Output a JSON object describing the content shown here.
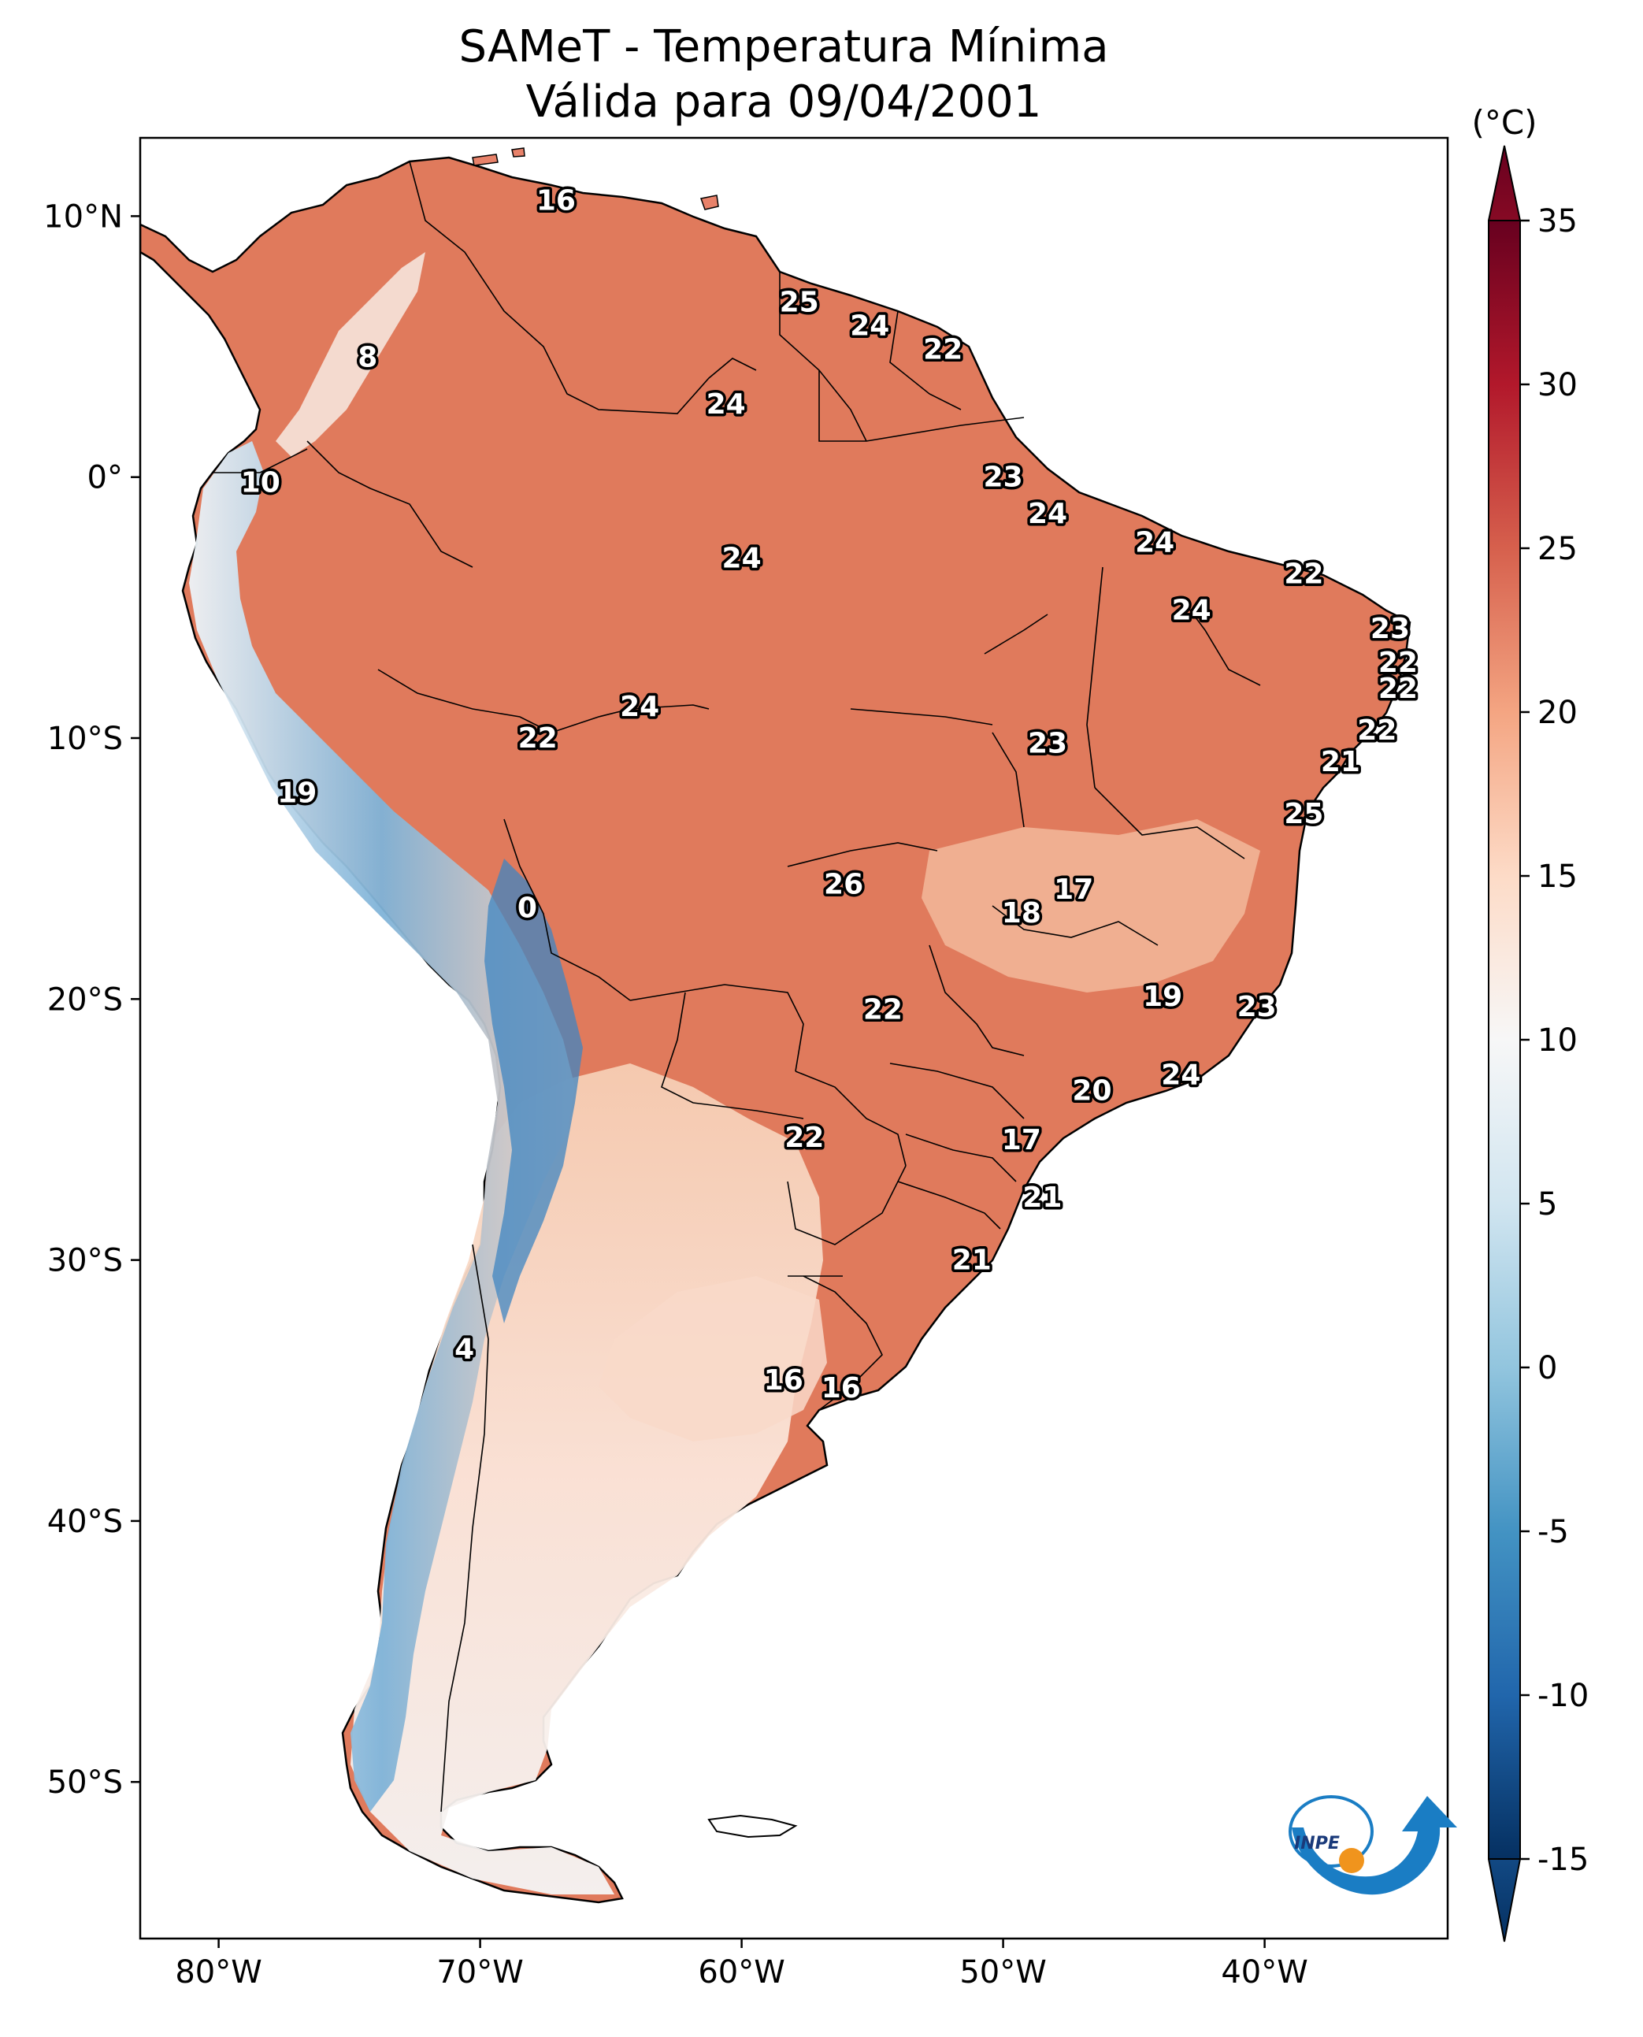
{
  "title": {
    "line1": "SAMeT - Temperatura Mínima",
    "line2": "Válida para 09/04/2001"
  },
  "map": {
    "lon_range": [
      -83,
      -33
    ],
    "lat_range": [
      -56,
      13
    ],
    "lon_ticks": [
      {
        "value": -80,
        "label": "80°W"
      },
      {
        "value": -70,
        "label": "70°W"
      },
      {
        "value": -60,
        "label": "60°W"
      },
      {
        "value": -50,
        "label": "50°W"
      },
      {
        "value": -40,
        "label": "40°W"
      }
    ],
    "lat_ticks": [
      {
        "value": 10,
        "label": "10°N"
      },
      {
        "value": 0,
        "label": "0°"
      },
      {
        "value": -10,
        "label": "10°S"
      },
      {
        "value": -20,
        "label": "20°S"
      },
      {
        "value": -30,
        "label": "30°S"
      },
      {
        "value": -40,
        "label": "40°S"
      },
      {
        "value": -50,
        "label": "50°S"
      }
    ],
    "city_values": [
      {
        "lon": -67.1,
        "lat": 10.6,
        "value": "16"
      },
      {
        "lon": -74.3,
        "lat": 4.6,
        "value": "8"
      },
      {
        "lon": -57.8,
        "lat": 6.7,
        "value": "25"
      },
      {
        "lon": -55.1,
        "lat": 5.8,
        "value": "24"
      },
      {
        "lon": -52.3,
        "lat": 4.9,
        "value": "22"
      },
      {
        "lon": -60.6,
        "lat": 2.8,
        "value": "24"
      },
      {
        "lon": -78.4,
        "lat": -0.2,
        "value": "10"
      },
      {
        "lon": -50.0,
        "lat": 0.0,
        "value": "23"
      },
      {
        "lon": -60.0,
        "lat": -3.1,
        "value": "24"
      },
      {
        "lon": -48.3,
        "lat": -1.4,
        "value": "24"
      },
      {
        "lon": -44.2,
        "lat": -2.5,
        "value": "24"
      },
      {
        "lon": -38.5,
        "lat": -3.7,
        "value": "22"
      },
      {
        "lon": -42.8,
        "lat": -5.1,
        "value": "24"
      },
      {
        "lon": -35.2,
        "lat": -5.8,
        "value": "23"
      },
      {
        "lon": -34.9,
        "lat": -7.1,
        "value": "22"
      },
      {
        "lon": -34.9,
        "lat": -8.1,
        "value": "22"
      },
      {
        "lon": -63.9,
        "lat": -8.8,
        "value": "24"
      },
      {
        "lon": -67.8,
        "lat": -10.0,
        "value": "22"
      },
      {
        "lon": -48.3,
        "lat": -10.2,
        "value": "23"
      },
      {
        "lon": -35.7,
        "lat": -9.7,
        "value": "22"
      },
      {
        "lon": -37.1,
        "lat": -10.9,
        "value": "21"
      },
      {
        "lon": -77.0,
        "lat": -12.1,
        "value": "19"
      },
      {
        "lon": -38.5,
        "lat": -12.9,
        "value": "25"
      },
      {
        "lon": -56.1,
        "lat": -15.6,
        "value": "26"
      },
      {
        "lon": -47.3,
        "lat": -15.8,
        "value": "17"
      },
      {
        "lon": -49.3,
        "lat": -16.7,
        "value": "18"
      },
      {
        "lon": -68.2,
        "lat": -16.5,
        "value": "0"
      },
      {
        "lon": -54.6,
        "lat": -20.4,
        "value": "22"
      },
      {
        "lon": -43.9,
        "lat": -19.9,
        "value": "19"
      },
      {
        "lon": -40.3,
        "lat": -20.3,
        "value": "23"
      },
      {
        "lon": -46.6,
        "lat": -23.5,
        "value": "20"
      },
      {
        "lon": -43.2,
        "lat": -22.9,
        "value": "24"
      },
      {
        "lon": -57.6,
        "lat": -25.3,
        "value": "22"
      },
      {
        "lon": -49.3,
        "lat": -25.4,
        "value": "17"
      },
      {
        "lon": -48.5,
        "lat": -27.6,
        "value": "21"
      },
      {
        "lon": -51.2,
        "lat": -30.0,
        "value": "21"
      },
      {
        "lon": -70.6,
        "lat": -33.4,
        "value": "4"
      },
      {
        "lon": -56.2,
        "lat": -34.9,
        "value": "16"
      },
      {
        "lon": -58.4,
        "lat": -34.6,
        "value": "16"
      }
    ]
  },
  "colorbar": {
    "unit": "(°C)",
    "range": [
      -15,
      35
    ],
    "ticks": [
      {
        "value": 35,
        "label": "35"
      },
      {
        "value": 30,
        "label": "30"
      },
      {
        "value": 25,
        "label": "25"
      },
      {
        "value": 20,
        "label": "20"
      },
      {
        "value": 15,
        "label": "15"
      },
      {
        "value": 10,
        "label": "10"
      },
      {
        "value": 5,
        "label": "5"
      },
      {
        "value": 0,
        "label": "0"
      },
      {
        "value": -5,
        "label": "-5"
      },
      {
        "value": -10,
        "label": "-10"
      },
      {
        "value": -15,
        "label": "-15"
      }
    ],
    "colors": [
      "#053061",
      "#2166ac",
      "#4393c3",
      "#92c5de",
      "#d1e5f0",
      "#f7f7f7",
      "#fddbc7",
      "#f4a582",
      "#d6604d",
      "#b2182b",
      "#67001f"
    ]
  },
  "logo": {
    "text": "INPE",
    "blue": "#1a7dc4",
    "orange": "#f0941d"
  }
}
